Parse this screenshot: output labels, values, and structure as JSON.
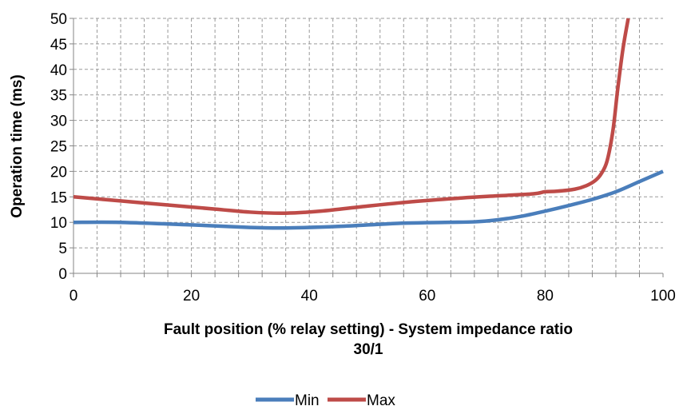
{
  "chart_data": {
    "type": "line",
    "title": "",
    "xlabel_lines": [
      "Fault position (% relay setting) - System impedance ratio",
      "30/1"
    ],
    "ylabel": "Operation time (ms)",
    "xlim": [
      0,
      100
    ],
    "ylim": [
      0,
      50
    ],
    "x_ticks": [
      "0",
      "20",
      "40",
      "60",
      "80",
      "100"
    ],
    "y_ticks": [
      "0",
      "5",
      "10",
      "15",
      "20",
      "25",
      "30",
      "35",
      "40",
      "45",
      "50"
    ],
    "grid": "dashed, both axes (minor every 4 x-units)",
    "legend_position": "bottom",
    "series": [
      {
        "name": "Min",
        "color": "#4a7ebb",
        "x": [
          0,
          8,
          20,
          30,
          36,
          45,
          55,
          63,
          68,
          72,
          76,
          80,
          84,
          88,
          92,
          96,
          100
        ],
        "y": [
          10,
          10,
          9.5,
          9,
          8.9,
          9.2,
          9.8,
          10,
          10.1,
          10.5,
          11.2,
          12.2,
          13.3,
          14.5,
          16,
          18,
          20
        ]
      },
      {
        "name": "Max",
        "color": "#be4b48",
        "x": [
          0,
          8,
          16,
          24,
          30,
          36,
          42,
          50,
          58,
          66,
          72,
          78,
          80,
          82,
          85,
          87,
          88.5,
          89.5,
          90.5,
          91.5,
          92.3,
          93.2,
          94.1
        ],
        "y": [
          15,
          14.2,
          13.4,
          12.6,
          12,
          11.8,
          12.2,
          13.2,
          14.1,
          14.8,
          15.2,
          15.6,
          16,
          16.1,
          16.5,
          17.2,
          18.2,
          19.5,
          22,
          28,
          36,
          44,
          50
        ]
      }
    ]
  }
}
